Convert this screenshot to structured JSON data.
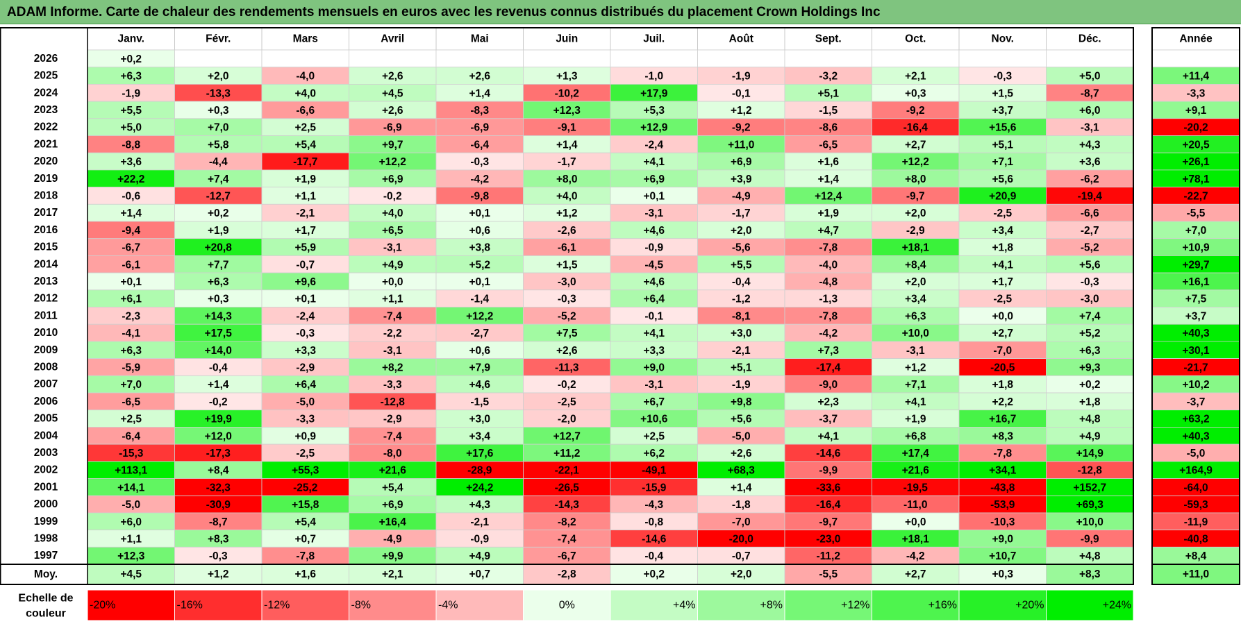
{
  "title": "ADAM Informe. Carte de chaleur des rendements mensuels en euros avec les revenus connus distribués du placement Crown Holdings Inc",
  "colors": {
    "title_bg": "#7fc47f",
    "red_max": "#ff0000",
    "green_max": "#00ff00",
    "neutral": "#ffffff"
  },
  "chart_data": {
    "type": "heatmap",
    "title": "ADAM Informe. Carte de chaleur des rendements mensuels en euros avec les revenus connus distribués du placement Crown Holdings Inc",
    "months": [
      "Janv.",
      "Févr.",
      "Mars",
      "Avril",
      "Mai",
      "Juin",
      "Juil.",
      "Août",
      "Sept.",
      "Oct.",
      "Nov.",
      "Déc."
    ],
    "year_header": "Année",
    "rows": [
      {
        "year": "2026",
        "values": [
          "+0,2",
          "",
          "",
          "",
          "",
          "",
          "",
          "",
          "",
          "",
          "",
          ""
        ],
        "annual": ""
      },
      {
        "year": "2025",
        "values": [
          "+6,3",
          "+2,0",
          "-4,0",
          "+2,6",
          "+2,6",
          "+1,3",
          "-1,0",
          "-1,9",
          "-3,2",
          "+2,1",
          "-0,3",
          "+5,0"
        ],
        "annual": "+11,4"
      },
      {
        "year": "2024",
        "values": [
          "-1,9",
          "-13,3",
          "+4,0",
          "+4,5",
          "+1,4",
          "-10,2",
          "+17,9",
          "-0,1",
          "+5,1",
          "+0,3",
          "+1,5",
          "-8,7"
        ],
        "annual": "-3,3"
      },
      {
        "year": "2023",
        "values": [
          "+5,5",
          "+0,3",
          "-6,6",
          "+2,6",
          "-8,3",
          "+12,3",
          "+5,3",
          "+1,2",
          "-1,5",
          "-9,2",
          "+3,7",
          "+6,0"
        ],
        "annual": "+9,1"
      },
      {
        "year": "2022",
        "values": [
          "+5,0",
          "+7,0",
          "+2,5",
          "-6,9",
          "-6,9",
          "-9,1",
          "+12,9",
          "-9,2",
          "-8,6",
          "-16,4",
          "+15,6",
          "-3,1"
        ],
        "annual": "-20,2"
      },
      {
        "year": "2021",
        "values": [
          "-8,8",
          "+5,8",
          "+5,4",
          "+9,7",
          "-6,4",
          "+1,4",
          "-2,4",
          "+11,0",
          "-6,5",
          "+2,7",
          "+5,1",
          "+4,3"
        ],
        "annual": "+20,5"
      },
      {
        "year": "2020",
        "values": [
          "+3,6",
          "-4,4",
          "-17,7",
          "+12,2",
          "-0,3",
          "-1,7",
          "+4,1",
          "+6,9",
          "+1,6",
          "+12,2",
          "+7,1",
          "+3,6"
        ],
        "annual": "+26,1"
      },
      {
        "year": "2019",
        "values": [
          "+22,2",
          "+7,4",
          "+1,9",
          "+6,9",
          "-4,2",
          "+8,0",
          "+6,9",
          "+3,9",
          "+1,4",
          "+8,0",
          "+5,6",
          "-6,2"
        ],
        "annual": "+78,1"
      },
      {
        "year": "2018",
        "values": [
          "-0,6",
          "-12,7",
          "+1,1",
          "-0,2",
          "-9,8",
          "+4,0",
          "+0,1",
          "-4,9",
          "+12,4",
          "-9,7",
          "+20,9",
          "-19,4"
        ],
        "annual": "-22,7"
      },
      {
        "year": "2017",
        "values": [
          "+1,4",
          "+0,2",
          "-2,1",
          "+4,0",
          "+0,1",
          "+1,2",
          "-3,1",
          "-1,7",
          "+1,9",
          "+2,0",
          "-2,5",
          "-6,6"
        ],
        "annual": "-5,5"
      },
      {
        "year": "2016",
        "values": [
          "-9,4",
          "+1,9",
          "+1,7",
          "+6,5",
          "+0,6",
          "-2,6",
          "+4,6",
          "+2,0",
          "+4,7",
          "-2,9",
          "+3,4",
          "-2,7"
        ],
        "annual": "+7,0"
      },
      {
        "year": "2015",
        "values": [
          "-6,7",
          "+20,8",
          "+5,9",
          "-3,1",
          "+3,8",
          "-6,1",
          "-0,9",
          "-5,6",
          "-7,8",
          "+18,1",
          "+1,8",
          "-5,2"
        ],
        "annual": "+10,9"
      },
      {
        "year": "2014",
        "values": [
          "-6,1",
          "+7,7",
          "-0,7",
          "+4,9",
          "+5,2",
          "+1,5",
          "-4,5",
          "+5,5",
          "-4,0",
          "+8,4",
          "+4,1",
          "+5,6"
        ],
        "annual": "+29,7"
      },
      {
        "year": "2013",
        "values": [
          "+0,1",
          "+6,3",
          "+9,6",
          "+0,0",
          "+0,1",
          "-3,0",
          "+4,6",
          "-0,4",
          "-4,8",
          "+2,0",
          "+1,7",
          "-0,3"
        ],
        "annual": "+16,1"
      },
      {
        "year": "2012",
        "values": [
          "+6,1",
          "+0,3",
          "+0,1",
          "+1,1",
          "-1,4",
          "-0,3",
          "+6,4",
          "-1,2",
          "-1,3",
          "+3,4",
          "-2,5",
          "-3,0"
        ],
        "annual": "+7,5"
      },
      {
        "year": "2011",
        "values": [
          "-2,3",
          "+14,3",
          "-2,4",
          "-7,4",
          "+12,2",
          "-5,2",
          "-0,1",
          "-8,1",
          "-7,8",
          "+6,3",
          "+0,0",
          "+7,4"
        ],
        "annual": "+3,7"
      },
      {
        "year": "2010",
        "values": [
          "-4,1",
          "+17,5",
          "-0,3",
          "-2,2",
          "-2,7",
          "+7,5",
          "+4,1",
          "+3,0",
          "-4,2",
          "+10,0",
          "+2,7",
          "+5,2"
        ],
        "annual": "+40,3"
      },
      {
        "year": "2009",
        "values": [
          "+6,3",
          "+14,0",
          "+3,3",
          "-3,1",
          "+0,6",
          "+2,6",
          "+3,3",
          "-2,1",
          "+7,3",
          "-3,1",
          "-7,0",
          "+6,3"
        ],
        "annual": "+30,1"
      },
      {
        "year": "2008",
        "values": [
          "-5,9",
          "-0,4",
          "-2,9",
          "+8,2",
          "+7,9",
          "-11,3",
          "+9,0",
          "+5,1",
          "-17,4",
          "+1,2",
          "-20,5",
          "+9,3"
        ],
        "annual": "-21,7"
      },
      {
        "year": "2007",
        "values": [
          "+7,0",
          "+1,4",
          "+6,4",
          "-3,3",
          "+4,6",
          "-0,2",
          "-3,1",
          "-1,9",
          "-9,0",
          "+7,1",
          "+1,8",
          "+0,2"
        ],
        "annual": "+10,2"
      },
      {
        "year": "2006",
        "values": [
          "-6,5",
          "-0,2",
          "-5,0",
          "-12,8",
          "-1,5",
          "-2,5",
          "+6,7",
          "+9,8",
          "+2,3",
          "+4,1",
          "+2,2",
          "+1,8"
        ],
        "annual": "-3,7"
      },
      {
        "year": "2005",
        "values": [
          "+2,5",
          "+19,9",
          "-3,3",
          "-2,9",
          "+3,0",
          "-2,0",
          "+10,6",
          "+5,6",
          "-3,7",
          "+1,9",
          "+16,7",
          "+4,8"
        ],
        "annual": "+63,2"
      },
      {
        "year": "2004",
        "values": [
          "-6,4",
          "+12,0",
          "+0,9",
          "-7,4",
          "+3,4",
          "+12,7",
          "+2,5",
          "-5,0",
          "+4,1",
          "+6,8",
          "+8,3",
          "+4,9"
        ],
        "annual": "+40,3"
      },
      {
        "year": "2003",
        "values": [
          "-15,3",
          "-17,3",
          "-2,5",
          "-8,0",
          "+17,6",
          "+11,2",
          "+6,2",
          "+2,6",
          "-14,6",
          "+17,4",
          "-7,8",
          "+14,9"
        ],
        "annual": "-5,0"
      },
      {
        "year": "2002",
        "values": [
          "+113,1",
          "+8,4",
          "+55,3",
          "+21,6",
          "-28,9",
          "-22,1",
          "-49,1",
          "+68,3",
          "-9,9",
          "+21,6",
          "+34,1",
          "-12,8"
        ],
        "annual": "+164,9"
      },
      {
        "year": "2001",
        "values": [
          "+14,1",
          "-32,3",
          "-25,2",
          "+5,4",
          "+24,2",
          "-26,5",
          "-15,9",
          "+1,4",
          "-33,6",
          "-19,5",
          "-43,8",
          "+152,7"
        ],
        "annual": "-64,0"
      },
      {
        "year": "2000",
        "values": [
          "-5,0",
          "-30,9",
          "+15,8",
          "+6,9",
          "+4,3",
          "-14,3",
          "-4,3",
          "-1,8",
          "-16,4",
          "-11,0",
          "-53,9",
          "+69,3"
        ],
        "annual": "-59,3"
      },
      {
        "year": "1999",
        "values": [
          "+6,0",
          "-8,7",
          "+5,4",
          "+16,4",
          "-2,1",
          "-8,2",
          "-0,8",
          "-7,0",
          "-9,7",
          "+0,0",
          "-10,3",
          "+10,0"
        ],
        "annual": "-11,9"
      },
      {
        "year": "1998",
        "values": [
          "+1,1",
          "+8,3",
          "+0,7",
          "-4,9",
          "-0,9",
          "-7,4",
          "-14,6",
          "-20,0",
          "-23,0",
          "+18,1",
          "+9,0",
          "-9,9"
        ],
        "annual": "-40,8"
      },
      {
        "year": "1997",
        "values": [
          "+12,3",
          "-0,3",
          "-7,8",
          "+9,9",
          "+4,9",
          "-6,7",
          "-0,4",
          "-0,7",
          "-11,2",
          "-4,2",
          "+10,7",
          "+4,8"
        ],
        "annual": "+8,4"
      }
    ],
    "average": {
      "label": "Moy.",
      "values": [
        "+4,5",
        "+1,2",
        "+1,6",
        "+2,1",
        "+0,7",
        "-2,8",
        "+0,2",
        "+2,0",
        "-5,5",
        "+2,7",
        "+0,3",
        "+8,3"
      ],
      "annual": "+11,0"
    },
    "scale": {
      "label_line1": "Echelle de",
      "label_line2": "couleur",
      "steps": [
        "-20%",
        "-16%",
        "-12%",
        "-8%",
        "-4%",
        "0%",
        "+4%",
        "+8%",
        "+12%",
        "+16%",
        "+20%",
        "+24%"
      ],
      "values": [
        -20,
        -16,
        -12,
        -8,
        -4,
        0,
        4,
        8,
        12,
        16,
        20,
        24
      ]
    }
  }
}
